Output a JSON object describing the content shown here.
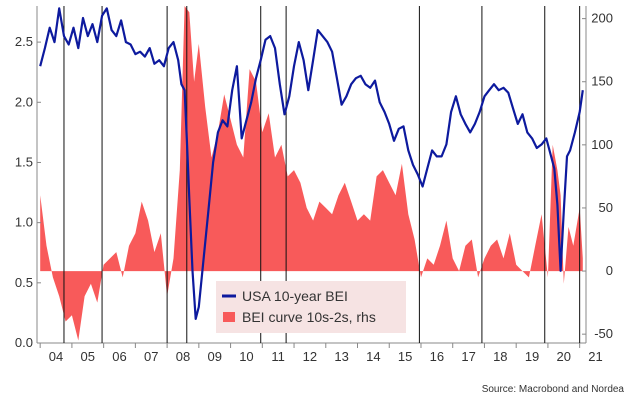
{
  "chart_data": {
    "type": "line",
    "title": "",
    "source": "Source: Macrobond and Nordea",
    "x_tick_labels": [
      "04",
      "05",
      "06",
      "07",
      "08",
      "09",
      "10",
      "11",
      "12",
      "13",
      "14",
      "15",
      "16",
      "17",
      "18",
      "19",
      "20",
      "21"
    ],
    "x_range": [
      2003.9,
      2021.2
    ],
    "left_axis": {
      "ticks": [
        "0.0",
        "0.5",
        "1.0",
        "1.5",
        "2.0",
        "2.5"
      ],
      "ylim": [
        0.0,
        2.8
      ]
    },
    "right_axis": {
      "ticks": [
        "-50",
        "0",
        "50",
        "100",
        "150",
        "200"
      ],
      "ylim": [
        -57,
        210
      ]
    },
    "vertical_markers": [
      2004.75,
      2005.95,
      2008.0,
      2008.62,
      2010.95,
      2011.75,
      2015.95,
      2017.92,
      2019.9,
      2021.0
    ],
    "legend": {
      "placement": "bottom-center"
    },
    "series": [
      {
        "name": "USA 10-year BEI",
        "axis": "left",
        "kind": "line",
        "color": "#0d1a9e",
        "x": [
          2004.0,
          2004.15,
          2004.3,
          2004.45,
          2004.6,
          2004.75,
          2004.9,
          2005.05,
          2005.2,
          2005.35,
          2005.5,
          2005.65,
          2005.8,
          2005.95,
          2006.1,
          2006.25,
          2006.4,
          2006.55,
          2006.7,
          2006.85,
          2007.0,
          2007.15,
          2007.3,
          2007.45,
          2007.6,
          2007.75,
          2007.9,
          2008.05,
          2008.2,
          2008.35,
          2008.45,
          2008.55,
          2008.62,
          2008.7,
          2008.8,
          2008.9,
          2009.0,
          2009.15,
          2009.3,
          2009.45,
          2009.6,
          2009.75,
          2009.9,
          2010.05,
          2010.2,
          2010.35,
          2010.5,
          2010.65,
          2010.8,
          2010.95,
          2011.1,
          2011.25,
          2011.4,
          2011.55,
          2011.7,
          2011.85,
          2012.0,
          2012.15,
          2012.3,
          2012.45,
          2012.6,
          2012.75,
          2012.9,
          2013.05,
          2013.2,
          2013.35,
          2013.5,
          2013.65,
          2013.8,
          2013.95,
          2014.1,
          2014.25,
          2014.4,
          2014.55,
          2014.7,
          2014.85,
          2015.0,
          2015.15,
          2015.3,
          2015.45,
          2015.6,
          2015.75,
          2015.9,
          2016.05,
          2016.2,
          2016.35,
          2016.5,
          2016.65,
          2016.8,
          2016.95,
          2017.1,
          2017.25,
          2017.4,
          2017.55,
          2017.7,
          2017.85,
          2018.0,
          2018.15,
          2018.3,
          2018.45,
          2018.6,
          2018.75,
          2018.9,
          2019.05,
          2019.2,
          2019.35,
          2019.5,
          2019.65,
          2019.8,
          2019.95,
          2020.1,
          2020.2,
          2020.3,
          2020.4,
          2020.5,
          2020.6,
          2020.7,
          2020.85,
          2021.0,
          2021.1
        ],
        "y": [
          2.3,
          2.45,
          2.62,
          2.5,
          2.78,
          2.55,
          2.48,
          2.62,
          2.45,
          2.7,
          2.55,
          2.65,
          2.5,
          2.72,
          2.78,
          2.6,
          2.55,
          2.68,
          2.5,
          2.48,
          2.4,
          2.42,
          2.38,
          2.45,
          2.32,
          2.35,
          2.3,
          2.45,
          2.5,
          2.35,
          2.15,
          2.1,
          1.7,
          1.2,
          0.6,
          0.2,
          0.3,
          0.7,
          1.1,
          1.5,
          1.75,
          1.85,
          1.8,
          2.1,
          2.3,
          1.7,
          1.85,
          2.0,
          2.2,
          2.35,
          2.52,
          2.55,
          2.45,
          2.15,
          1.9,
          2.05,
          2.3,
          2.5,
          2.35,
          2.1,
          2.35,
          2.6,
          2.55,
          2.5,
          2.42,
          2.2,
          1.98,
          2.05,
          2.15,
          2.2,
          2.22,
          2.15,
          2.12,
          2.18,
          2.0,
          1.92,
          1.82,
          1.68,
          1.78,
          1.8,
          1.6,
          1.48,
          1.4,
          1.3,
          1.45,
          1.6,
          1.55,
          1.55,
          1.65,
          1.92,
          2.05,
          1.9,
          1.82,
          1.75,
          1.82,
          1.92,
          2.05,
          2.1,
          2.15,
          2.1,
          2.12,
          2.08,
          1.95,
          1.82,
          1.9,
          1.75,
          1.7,
          1.62,
          1.65,
          1.7,
          1.55,
          1.45,
          1.15,
          0.6,
          1.1,
          1.55,
          1.6,
          1.75,
          1.92,
          2.1
        ]
      },
      {
        "name": "BEI curve 10s-2s, rhs",
        "axis": "right",
        "kind": "area",
        "color": "#f85a5a",
        "x": [
          2004.0,
          2004.2,
          2004.4,
          2004.6,
          2004.8,
          2005.0,
          2005.2,
          2005.4,
          2005.6,
          2005.8,
          2006.0,
          2006.2,
          2006.4,
          2006.6,
          2006.8,
          2007.0,
          2007.2,
          2007.4,
          2007.6,
          2007.8,
          2008.0,
          2008.2,
          2008.4,
          2008.55,
          2008.7,
          2008.85,
          2009.0,
          2009.2,
          2009.4,
          2009.6,
          2009.8,
          2010.0,
          2010.2,
          2010.4,
          2010.6,
          2010.8,
          2011.0,
          2011.2,
          2011.4,
          2011.6,
          2011.8,
          2012.0,
          2012.2,
          2012.4,
          2012.6,
          2012.8,
          2013.0,
          2013.2,
          2013.4,
          2013.6,
          2013.8,
          2014.0,
          2014.2,
          2014.4,
          2014.6,
          2014.8,
          2015.0,
          2015.2,
          2015.4,
          2015.6,
          2015.8,
          2016.0,
          2016.2,
          2016.4,
          2016.6,
          2016.8,
          2017.0,
          2017.2,
          2017.4,
          2017.6,
          2017.8,
          2018.0,
          2018.2,
          2018.4,
          2018.6,
          2018.8,
          2019.0,
          2019.2,
          2019.4,
          2019.6,
          2019.8,
          2020.0,
          2020.15,
          2020.3,
          2020.4,
          2020.5,
          2020.65,
          2020.8,
          2021.0,
          2021.1
        ],
        "y": [
          60,
          20,
          -5,
          -20,
          -40,
          -35,
          -55,
          -20,
          -10,
          -25,
          5,
          10,
          15,
          -5,
          20,
          30,
          55,
          40,
          15,
          30,
          -20,
          10,
          80,
          210,
          205,
          150,
          180,
          130,
          90,
          110,
          140,
          120,
          100,
          90,
          160,
          150,
          110,
          125,
          90,
          100,
          75,
          80,
          70,
          50,
          40,
          55,
          50,
          45,
          60,
          70,
          55,
          40,
          45,
          40,
          75,
          80,
          70,
          60,
          85,
          45,
          25,
          -5,
          10,
          5,
          20,
          40,
          10,
          0,
          20,
          25,
          -5,
          10,
          20,
          25,
          10,
          30,
          5,
          0,
          -5,
          20,
          45,
          -5,
          100,
          80,
          60,
          -10,
          35,
          20,
          50,
          10
        ]
      }
    ]
  }
}
